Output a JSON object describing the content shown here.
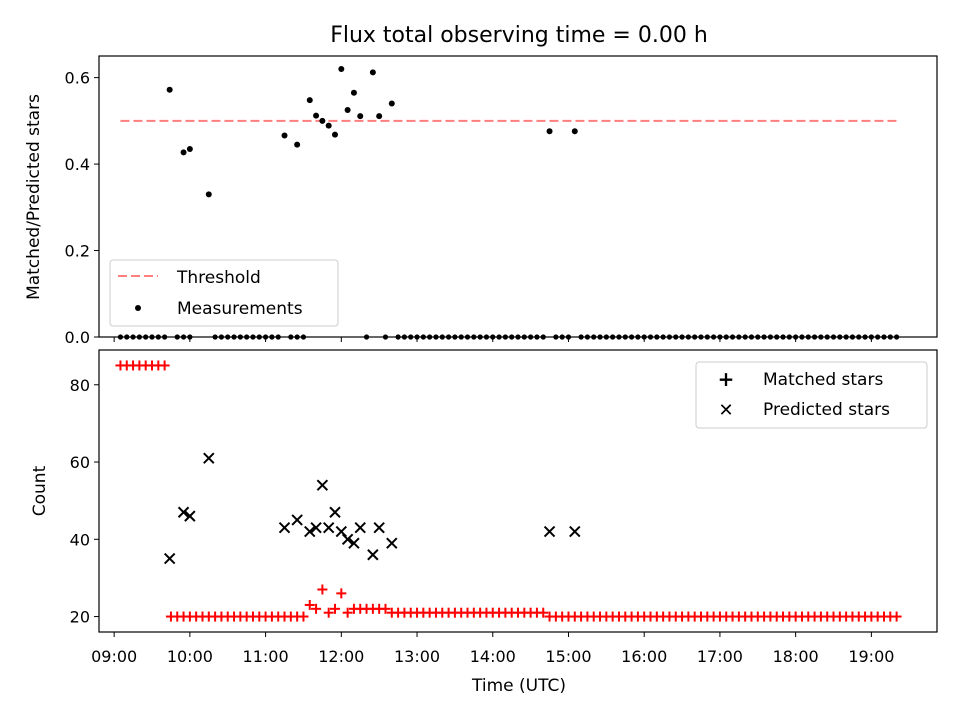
{
  "figure": {
    "title": "Flux total observing time = 0.00 h",
    "xlabel": "Time (UTC)",
    "colors": {
      "threshold": "#ff7f7f",
      "measurements": "#000000",
      "matched": "#ff0000",
      "predicted": "#000000"
    }
  },
  "chart_data": [
    {
      "type": "scatter",
      "title": "Flux total observing time = 0.00 h",
      "ylabel": "Matched/Predicted stars",
      "ylim": [
        0,
        0.65
      ],
      "yticks": [
        0.0,
        0.2,
        0.4,
        0.6
      ],
      "ytick_labels": [
        "0.0",
        "0.2",
        "0.4",
        "0.6"
      ],
      "xlim": [
        "08:48",
        "19:52"
      ],
      "legend_position": "lower-left",
      "threshold": {
        "name": "Threshold",
        "value": 0.5,
        "x_range": [
          "09:05",
          "19:20"
        ]
      },
      "measurements": {
        "name": "Measurements",
        "points": [
          [
            "09:44",
            0.572
          ],
          [
            "09:55",
            0.427
          ],
          [
            "10:00",
            0.435
          ],
          [
            "10:15",
            0.33
          ],
          [
            "11:15",
            0.466
          ],
          [
            "11:25",
            0.445
          ],
          [
            "11:35",
            0.548
          ],
          [
            "11:40",
            0.512
          ],
          [
            "11:45",
            0.5
          ],
          [
            "11:50",
            0.489
          ],
          [
            "11:55",
            0.468
          ],
          [
            "12:00",
            0.62
          ],
          [
            "12:05",
            0.525
          ],
          [
            "12:10",
            0.565
          ],
          [
            "12:15",
            0.511
          ],
          [
            "12:25",
            0.612
          ],
          [
            "12:30",
            0.511
          ],
          [
            "12:40",
            0.54
          ],
          [
            "14:45",
            0.476
          ],
          [
            "15:05",
            0.476
          ]
        ],
        "zero_ranges": [
          [
            "09:05",
            "09:40"
          ],
          [
            "09:50",
            "10:00"
          ],
          [
            "10:20",
            "11:10"
          ],
          [
            "11:20",
            "11:30"
          ],
          [
            "12:20",
            "12:20"
          ],
          [
            "12:35",
            "12:35"
          ],
          [
            "12:45",
            "14:40"
          ],
          [
            "14:50",
            "15:00"
          ],
          [
            "15:10",
            "19:20"
          ]
        ]
      }
    },
    {
      "type": "scatter",
      "ylabel": "Count",
      "xlabel": "Time (UTC)",
      "ylim": [
        16,
        89
      ],
      "yticks": [
        20,
        40,
        60,
        80
      ],
      "ytick_labels": [
        "20",
        "40",
        "60",
        "80"
      ],
      "xticks": [
        "09:00",
        "10:00",
        "11:00",
        "12:00",
        "13:00",
        "14:00",
        "15:00",
        "16:00",
        "17:00",
        "18:00",
        "19:00"
      ],
      "legend_position": "top-right",
      "series": [
        {
          "name": "Matched stars",
          "marker": "plus",
          "points": [
            [
              "09:05",
              85
            ],
            [
              "09:10",
              85
            ],
            [
              "09:15",
              85
            ],
            [
              "09:20",
              85
            ],
            [
              "09:25",
              85
            ],
            [
              "09:30",
              85
            ],
            [
              "09:35",
              85
            ],
            [
              "09:40",
              85
            ],
            [
              "11:35",
              23
            ],
            [
              "11:40",
              22
            ],
            [
              "11:45",
              27
            ],
            [
              "11:50",
              21
            ],
            [
              "11:55",
              22
            ],
            [
              "12:00",
              26
            ],
            [
              "12:05",
              21
            ],
            [
              "12:10",
              22
            ],
            [
              "12:15",
              22
            ],
            [
              "12:20",
              22
            ],
            [
              "12:25",
              22
            ],
            [
              "12:30",
              22
            ],
            [
              "12:35",
              22
            ]
          ],
          "baseline_ranges": [
            [
              "09:45",
              "11:30",
              20
            ],
            [
              "12:40",
              "14:40",
              21
            ],
            [
              "14:45",
              "19:20",
              20
            ]
          ]
        },
        {
          "name": "Predicted stars",
          "marker": "x",
          "points": [
            [
              "09:44",
              35
            ],
            [
              "09:55",
              47
            ],
            [
              "10:00",
              46
            ],
            [
              "10:15",
              61
            ],
            [
              "11:15",
              43
            ],
            [
              "11:25",
              45
            ],
            [
              "11:35",
              42
            ],
            [
              "11:40",
              43
            ],
            [
              "11:45",
              54
            ],
            [
              "11:50",
              43
            ],
            [
              "11:55",
              47
            ],
            [
              "12:00",
              42
            ],
            [
              "12:05",
              40
            ],
            [
              "12:10",
              39
            ],
            [
              "12:15",
              43
            ],
            [
              "12:25",
              36
            ],
            [
              "12:30",
              43
            ],
            [
              "12:40",
              39
            ],
            [
              "14:45",
              42
            ],
            [
              "15:05",
              42
            ]
          ]
        }
      ]
    }
  ]
}
